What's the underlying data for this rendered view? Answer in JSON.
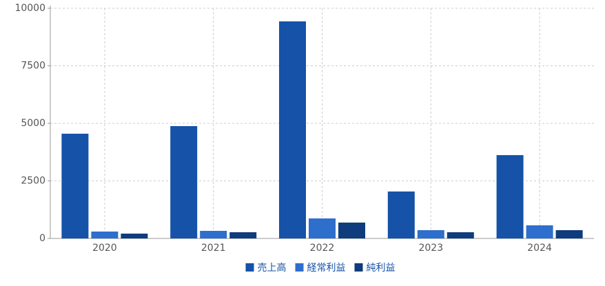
{
  "chart_data": {
    "type": "bar",
    "categories": [
      "2020",
      "2021",
      "2022",
      "2023",
      "2024"
    ],
    "series": [
      {
        "name": "売上高",
        "color": "#1552a8",
        "values": [
          4550,
          4880,
          9430,
          2040,
          3620
        ]
      },
      {
        "name": "経常利益",
        "color": "#2e6ecc",
        "values": [
          300,
          330,
          870,
          360,
          570
        ]
      },
      {
        "name": "純利益",
        "color": "#0e3c7c",
        "values": [
          210,
          270,
          690,
          270,
          360
        ]
      }
    ],
    "ylim": [
      0,
      10000
    ],
    "yticks": [
      0,
      2500,
      5000,
      7500,
      10000
    ],
    "grid": true,
    "legend": "bottom"
  }
}
